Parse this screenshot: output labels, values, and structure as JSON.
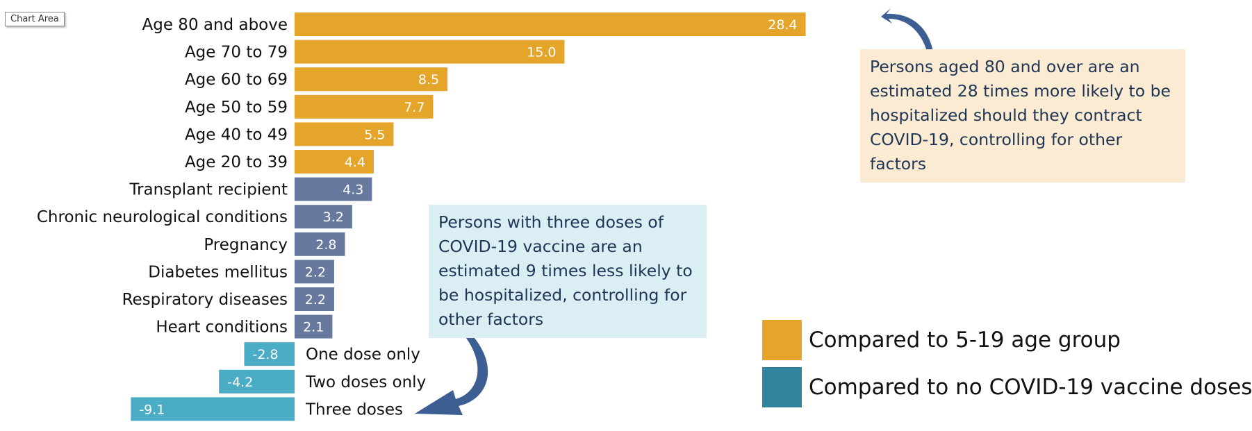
{
  "tooltip": "Chart Area",
  "colors": {
    "age": "#E5A52B",
    "condition": "#67799F",
    "vaccine": "#4BACC6",
    "legend_vaccine": "#31849B",
    "callout_age_bg": "#FCEBD3",
    "callout_vax_bg": "#DAEEF3",
    "arrow": "#3C5E92"
  },
  "chart_data": {
    "type": "bar",
    "orientation": "horizontal",
    "categories": [
      "Age 80 and above",
      "Age 70 to 79",
      "Age 60 to 69",
      "Age 50 to 59",
      "Age 40 to 49",
      "Age 20 to 39",
      "Transplant recipient",
      "Chronic neurological conditions",
      "Pregnancy",
      "Diabetes mellitus",
      "Respiratory diseases",
      "Heart conditions",
      "One dose only",
      "Two doses only",
      "Three doses"
    ],
    "values": [
      28.4,
      15.0,
      8.5,
      7.7,
      5.5,
      4.4,
      4.3,
      3.2,
      2.8,
      2.2,
      2.2,
      2.1,
      -2.8,
      -4.2,
      -9.1
    ],
    "value_labels": [
      "28.4",
      "15.0",
      "8.5",
      "7.7",
      "5.5",
      "4.4",
      "4.3",
      "3.2",
      "2.8",
      "2.2",
      "2.2",
      "2.1",
      "-2.8",
      "-4.2",
      "-9.1"
    ],
    "groups": [
      "age",
      "age",
      "age",
      "age",
      "age",
      "age",
      "condition",
      "condition",
      "condition",
      "condition",
      "condition",
      "condition",
      "vaccine",
      "vaccine",
      "vaccine"
    ],
    "xlim": [
      -9.1,
      28.4
    ],
    "legend": [
      {
        "key": "age",
        "label": "Compared to 5-19 age group"
      },
      {
        "key": "legend_vaccine",
        "label": "Compared to no COVID-19 vaccine doses"
      }
    ]
  },
  "callouts": {
    "age": "Persons aged 80 and over are an estimated 28 times more likely to be hospitalized should they contract COVID-19, controlling for other factors",
    "vaccine": "Persons with three doses of COVID-19 vaccine are an estimated 9 times less likely to be hospitalized, controlling for other factors"
  }
}
